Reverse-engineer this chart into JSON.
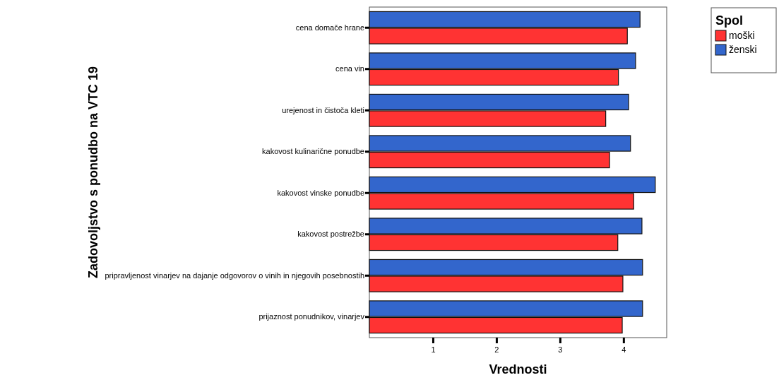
{
  "chart_data": {
    "type": "bar",
    "orientation": "horizontal",
    "xlabel": "Vrednosti",
    "ylabel": "Zadovoljstvo s ponudbo na VTC 19",
    "legend_title": "Spol",
    "legend": "top right",
    "categories": [
      "cena domače hrane",
      "cena vin",
      "urejenost in čistoča kleti",
      "kakovost kulinarične ponudbe",
      "kakovost vinske ponudbe",
      "kakovost postrežbe",
      "pripravljenost vinarjev na dajanje odgovorov o vinih in njegovih posebnostih",
      "prijaznost ponudnikov, vinarjev"
    ],
    "series": [
      {
        "name": "moški",
        "color": "#ff3333",
        "values": [
          4.06,
          3.92,
          3.72,
          3.78,
          4.16,
          3.91,
          3.99,
          3.98
        ]
      },
      {
        "name": "ženski",
        "color": "#3366cc",
        "values": [
          4.26,
          4.19,
          4.08,
          4.11,
          4.5,
          4.29,
          4.3,
          4.3
        ]
      }
    ],
    "xlim": [
      0,
      4.68
    ],
    "xticks": [
      1,
      2,
      3,
      4
    ]
  }
}
